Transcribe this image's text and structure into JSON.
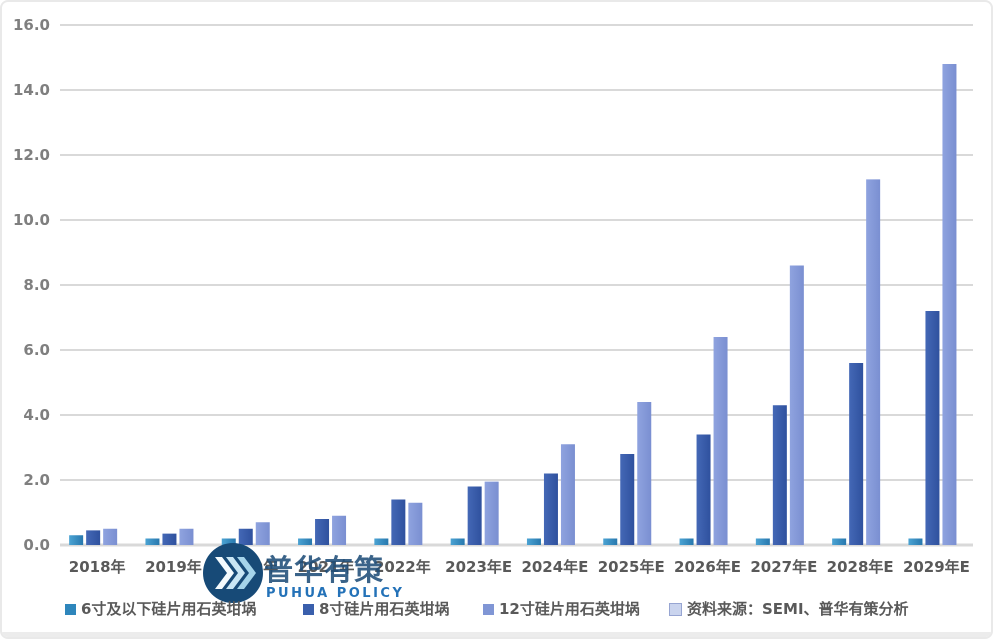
{
  "chart_data": {
    "type": "bar",
    "title": "",
    "categories": [
      "2018年",
      "2019年",
      "2020年",
      "2021年",
      "2022年",
      "2023年E",
      "2024年E",
      "2025年E",
      "2026年E",
      "2027年E",
      "2028年E",
      "2029年E"
    ],
    "series": [
      {
        "name": "6寸及以下硅片用石英坩埚",
        "color": "#2E86BC",
        "shade_light": "#4BA3D3",
        "shade_dark": "#2878AE",
        "values": [
          0.3,
          0.2,
          0.2,
          0.2,
          0.2,
          0.2,
          0.2,
          0.2,
          0.2,
          0.2,
          0.2,
          0.2
        ]
      },
      {
        "name": "8寸硅片用石英坩埚",
        "color": "#3A5FAC",
        "shade_light": "#4468B6",
        "shade_dark": "#2F519E",
        "values": [
          0.45,
          0.35,
          0.5,
          0.8,
          1.4,
          1.8,
          2.2,
          2.8,
          3.4,
          4.3,
          5.6,
          7.2
        ]
      },
      {
        "name": "12寸硅片用石英坩埚",
        "color": "#8096D5",
        "shade_light": "#8FA3DF",
        "shade_dark": "#7A8FD1",
        "values": [
          0.5,
          0.5,
          0.7,
          0.9,
          1.3,
          1.95,
          3.1,
          4.4,
          6.4,
          8.6,
          11.25,
          14.8
        ]
      }
    ],
    "y_tick_labels": [
      "0.0",
      "2.0",
      "4.0",
      "6.0",
      "8.0",
      "10.0",
      "12.0",
      "14.0",
      "16.0"
    ],
    "y_tick_values": [
      0,
      2,
      4,
      6,
      8,
      10,
      12,
      14,
      16
    ],
    "ylim": [
      0,
      16
    ],
    "grid": true,
    "legend_position": "bottom",
    "source_note": "资料来源：SEMI、普华有策分析",
    "source_marker_color": "#CAD4EE",
    "source_marker_border": "#97A5D2"
  },
  "style_colors": {
    "gridline": "#D9D9D9",
    "axis_line": "#D9D9D9",
    "y_tick_text": "#7F7F7F",
    "x_tick_text": "#595959",
    "legend_text": "#595959"
  },
  "watermark": {
    "cn": "普华有策",
    "en": "PUHUA POLICY",
    "circle_color": "#174A77",
    "chevron_colors": [
      "#F4FBFE",
      "#C9E6F4",
      "#A5D4EA"
    ]
  }
}
